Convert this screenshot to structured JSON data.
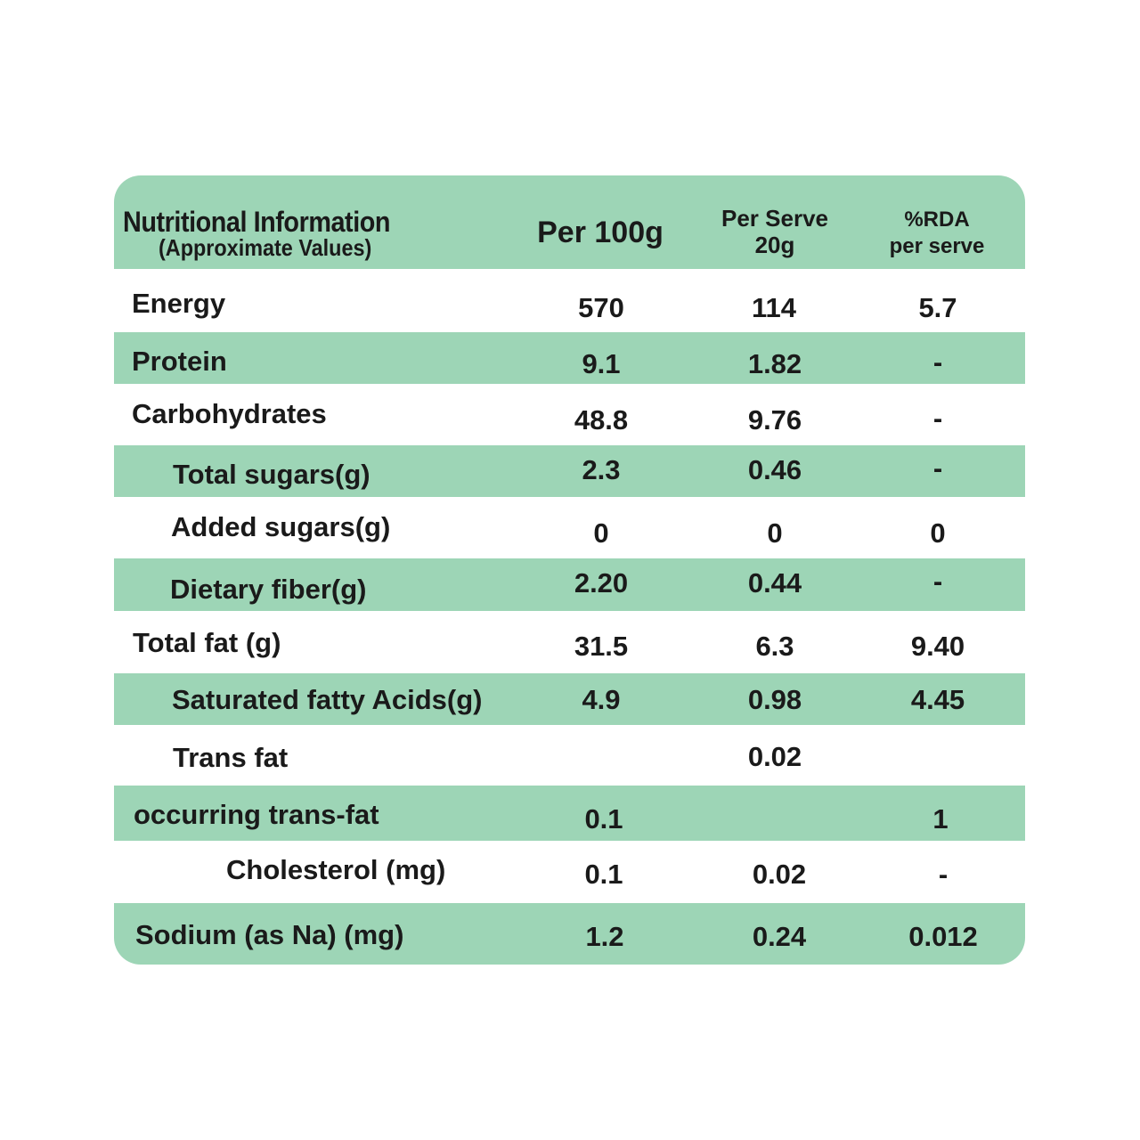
{
  "header": {
    "title": "Nutritional Information",
    "subtitle": "(Approximate Values)",
    "col_per_100g": "Per 100g",
    "col_per_serve_line1": "Per Serve",
    "col_per_serve_line2": "20g",
    "col_rda_line1": "%RDA",
    "col_rda_line2": "per serve"
  },
  "rows": [
    {
      "label": "Energy",
      "per100": "570",
      "perServe": "114",
      "rda": "5.7"
    },
    {
      "label": "Protein",
      "per100": "9.1",
      "perServe": "1.82",
      "rda": "-"
    },
    {
      "label": "Carbohydrates",
      "per100": "48.8",
      "perServe": "9.76",
      "rda": "-"
    },
    {
      "label": "Total sugars(g)",
      "per100": "2.3",
      "perServe": "0.46",
      "rda": "-"
    },
    {
      "label": "Added sugars(g)",
      "per100": "0",
      "perServe": "0",
      "rda": "0"
    },
    {
      "label": "Dietary fiber(g)",
      "per100": "2.20",
      "perServe": "0.44",
      "rda": "-"
    },
    {
      "label": "Total fat (g)",
      "per100": "31.5",
      "perServe": "6.3",
      "rda": "9.40"
    },
    {
      "label": "Saturated fatty Acids(g)",
      "per100": "4.9",
      "perServe": "0.98",
      "rda": "4.45"
    },
    {
      "label": "Trans fat",
      "per100": "",
      "perServe": "0.02",
      "rda": ""
    },
    {
      "label": "occurring trans-fat",
      "per100": "0.1",
      "perServe": "",
      "rda": "1"
    },
    {
      "label": "Cholesterol (mg)",
      "per100": "0.1",
      "perServe": "0.02",
      "rda": "-"
    },
    {
      "label": "Sodium (as Na) (mg)",
      "per100": "1.2",
      "perServe": "0.24",
      "rda": "0.012"
    }
  ],
  "colors": {
    "band_green": "#9dd5b6",
    "text": "#1a1a1a"
  }
}
